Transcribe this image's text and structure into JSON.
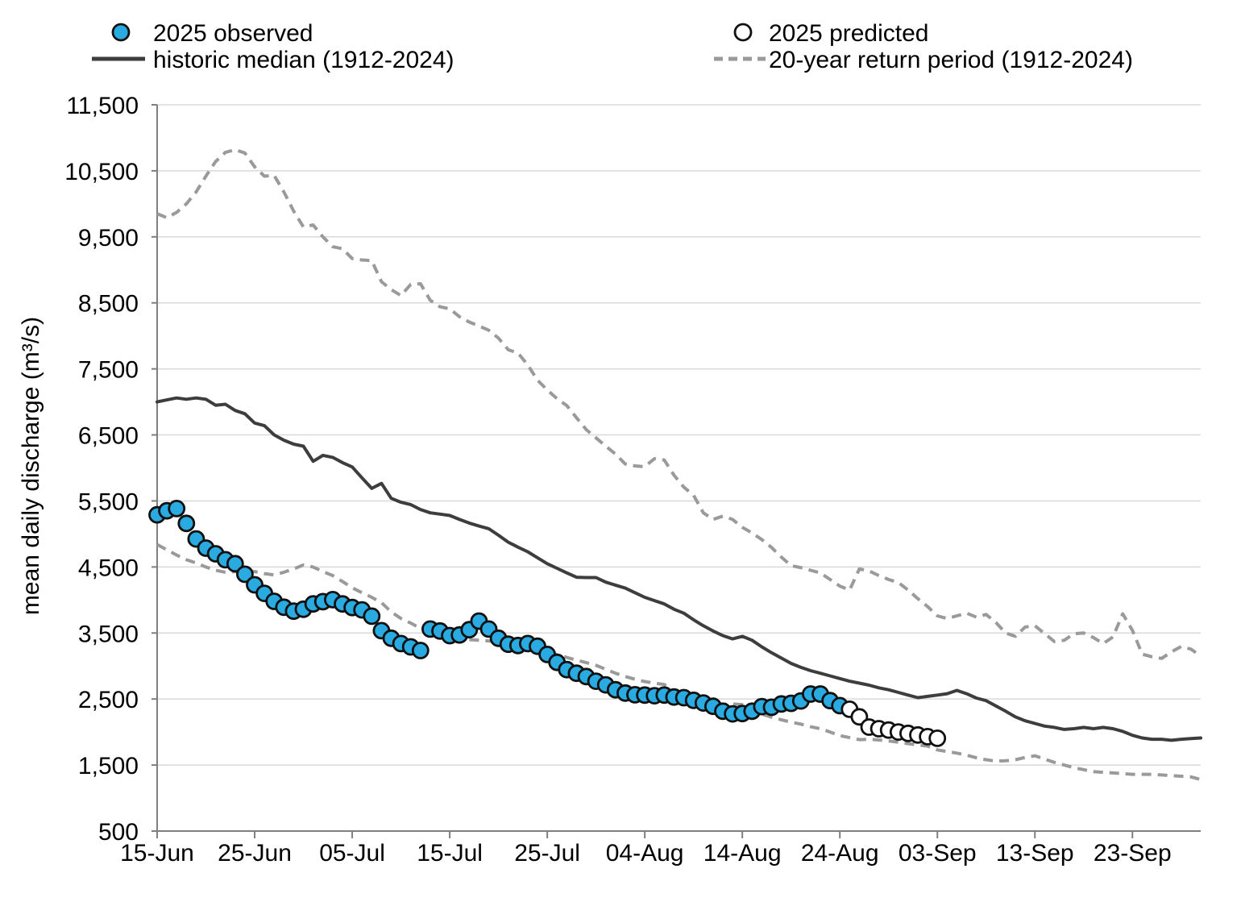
{
  "legend": {
    "observed_label": "2025 observed",
    "predicted_label": "2025 predicted",
    "median_label": "historic median (1912-2024)",
    "return_period_label": "20-year return period (1912-2024)"
  },
  "colors": {
    "observed_fill": "#29abe2",
    "predicted_fill": "#ffffff",
    "marker_stroke": "#111111",
    "median_line": "#3d3d3d",
    "dashed_line": "#9a9a9a",
    "gridline": "#d9d9d9",
    "axis": "#7f7f7f",
    "text": "#000000"
  },
  "chart_data": {
    "type": "line",
    "title": "",
    "xlabel": "",
    "ylabel": "mean daily discharge (m³/s)",
    "grid": "horizontal",
    "legend_position": "top",
    "ylim": [
      500,
      11500
    ],
    "y_ticks": [
      500,
      1500,
      2500,
      3500,
      4500,
      5500,
      6500,
      7500,
      8500,
      9500,
      10500,
      11500
    ],
    "x_unit": "day index, 0 = 15-Jun-2025, daily step",
    "xlim_days": [
      0,
      107
    ],
    "x_ticks": [
      {
        "day": 0,
        "label": "15-Jun"
      },
      {
        "day": 10,
        "label": "25-Jun"
      },
      {
        "day": 20,
        "label": "05-Jul"
      },
      {
        "day": 30,
        "label": "15-Jul"
      },
      {
        "day": 40,
        "label": "25-Jul"
      },
      {
        "day": 50,
        "label": "04-Aug"
      },
      {
        "day": 60,
        "label": "14-Aug"
      },
      {
        "day": 70,
        "label": "24-Aug"
      },
      {
        "day": 80,
        "label": "03-Sep"
      },
      {
        "day": 90,
        "label": "13-Sep"
      },
      {
        "day": 100,
        "label": "23-Sep"
      }
    ],
    "series": [
      {
        "name": "2025 observed",
        "kind": "scatter",
        "marker": "filled-circle",
        "start_day": 0,
        "values": [
          5290,
          5350,
          5385,
          5160,
          4925,
          4785,
          4700,
          4610,
          4550,
          4390,
          4230,
          4100,
          3980,
          3890,
          3830,
          3860,
          3940,
          3975,
          4005,
          3940,
          3885,
          3850,
          3755,
          3535,
          3420,
          3340,
          3290,
          3235,
          3560,
          3530,
          3460,
          3470,
          3550,
          3680,
          3560,
          3420,
          3330,
          3310,
          3340,
          3300,
          3175,
          3055,
          2945,
          2890,
          2840,
          2770,
          2715,
          2640,
          2590,
          2565,
          2560,
          2550,
          2560,
          2530,
          2520,
          2480,
          2440,
          2390,
          2315,
          2275,
          2280,
          2315,
          2385,
          2375,
          2425,
          2435,
          2470,
          2575,
          2575,
          2475,
          2400
        ]
      },
      {
        "name": "2025 predicted",
        "kind": "scatter",
        "marker": "open-circle",
        "start_day": 71,
        "values": [
          2345,
          2230,
          2075,
          2050,
          2030,
          2000,
          1980,
          1955,
          1930,
          1905
        ]
      },
      {
        "name": "historic median (1912-2024)",
        "kind": "line",
        "style": "solid",
        "start_day": 0,
        "values": [
          7000,
          7030,
          7060,
          7040,
          7060,
          7040,
          6950,
          6965,
          6870,
          6820,
          6680,
          6640,
          6500,
          6420,
          6360,
          6330,
          6100,
          6190,
          6160,
          6080,
          6015,
          5850,
          5690,
          5765,
          5540,
          5480,
          5445,
          5370,
          5320,
          5300,
          5280,
          5220,
          5165,
          5120,
          5080,
          4980,
          4875,
          4800,
          4730,
          4640,
          4550,
          4480,
          4410,
          4345,
          4340,
          4340,
          4270,
          4225,
          4180,
          4110,
          4040,
          3990,
          3940,
          3860,
          3800,
          3700,
          3610,
          3530,
          3460,
          3410,
          3450,
          3390,
          3290,
          3200,
          3120,
          3040,
          2980,
          2930,
          2890,
          2850,
          2810,
          2770,
          2740,
          2710,
          2670,
          2640,
          2600,
          2560,
          2520,
          2540,
          2560,
          2580,
          2630,
          2580,
          2515,
          2475,
          2395,
          2315,
          2230,
          2170,
          2130,
          2090,
          2070,
          2040,
          2050,
          2070,
          2050,
          2070,
          2050,
          2010,
          1950,
          1910,
          1890,
          1890,
          1875,
          1890,
          1900,
          1910
        ]
      },
      {
        "name": "20-year return period (1912-2024) upper bound",
        "kind": "line",
        "style": "dashed",
        "start_day": 0,
        "values": [
          9850,
          9790,
          9870,
          10000,
          10180,
          10420,
          10640,
          10780,
          10820,
          10770,
          10560,
          10420,
          10430,
          10180,
          9890,
          9650,
          9680,
          9500,
          9350,
          9320,
          9170,
          9150,
          9140,
          8820,
          8700,
          8610,
          8780,
          8790,
          8540,
          8440,
          8410,
          8290,
          8210,
          8150,
          8085,
          7965,
          7790,
          7740,
          7560,
          7330,
          7180,
          7050,
          6945,
          6760,
          6580,
          6455,
          6330,
          6210,
          6060,
          6030,
          6020,
          6140,
          6120,
          5890,
          5710,
          5585,
          5320,
          5220,
          5270,
          5220,
          5100,
          5015,
          4915,
          4795,
          4650,
          4520,
          4490,
          4450,
          4410,
          4310,
          4210,
          4150,
          4470,
          4440,
          4370,
          4310,
          4265,
          4150,
          4020,
          3900,
          3760,
          3720,
          3760,
          3800,
          3740,
          3780,
          3660,
          3500,
          3450,
          3590,
          3610,
          3490,
          3370,
          3390,
          3490,
          3500,
          3430,
          3340,
          3440,
          3790,
          3540,
          3180,
          3140,
          3115,
          3215,
          3295,
          3255,
          3150
        ]
      },
      {
        "name": "20-year return period (1912-2024) lower bound",
        "kind": "line",
        "style": "dashed",
        "start_day": 0,
        "values": [
          4840,
          4760,
          4680,
          4610,
          4560,
          4500,
          4450,
          4420,
          4430,
          4440,
          4430,
          4400,
          4380,
          4420,
          4470,
          4530,
          4500,
          4430,
          4370,
          4280,
          4185,
          4110,
          4040,
          3960,
          3820,
          3720,
          3650,
          3570,
          3530,
          3500,
          3460,
          3430,
          3400,
          3390,
          3380,
          3360,
          3340,
          3300,
          3260,
          3230,
          3210,
          3170,
          3130,
          3090,
          3050,
          3010,
          2950,
          2890,
          2840,
          2800,
          2765,
          2740,
          2720,
          2620,
          2560,
          2510,
          2455,
          2430,
          2415,
          2425,
          2415,
          2340,
          2270,
          2225,
          2185,
          2150,
          2120,
          2080,
          2050,
          2000,
          1945,
          1915,
          1885,
          1890,
          1880,
          1865,
          1845,
          1825,
          1805,
          1785,
          1730,
          1705,
          1680,
          1650,
          1610,
          1580,
          1560,
          1565,
          1580,
          1615,
          1640,
          1590,
          1540,
          1500,
          1460,
          1430,
          1400,
          1390,
          1380,
          1370,
          1360,
          1360,
          1360,
          1350,
          1340,
          1330,
          1320,
          1280
        ]
      }
    ]
  }
}
